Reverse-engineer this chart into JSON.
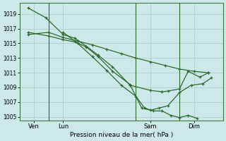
{
  "bg_color": "#cce8e8",
  "line_color": "#2d6b2d",
  "grid_color": "#aacccc",
  "ylim": [
    1004.5,
    1020.5
  ],
  "yticks": [
    1005,
    1007,
    1009,
    1011,
    1013,
    1015,
    1017,
    1019
  ],
  "xlabel": "Pression niveau de la mer( hPa )",
  "xlim": [
    0.0,
    7.0
  ],
  "xtick_positions": [
    0.5,
    1.5,
    4.5,
    6.0
  ],
  "xtick_labels": [
    "Ven",
    "Lun",
    "Sam",
    "Dim"
  ],
  "vlines": [
    1.0,
    4.0,
    5.5
  ],
  "lines": [
    {
      "x": [
        0.3,
        0.9,
        1.5,
        1.9,
        2.3,
        2.7,
        3.2,
        3.8,
        4.5,
        4.9,
        5.1,
        5.5,
        5.8,
        6.2,
        6.5
      ],
      "y": [
        1019.8,
        1018.5,
        1016.2,
        1015.7,
        1014.6,
        1013.4,
        1011.8,
        1009.3,
        1008.6,
        1008.4,
        1008.5,
        1008.8,
        1011.2,
        1010.4,
        1011.0
      ]
    },
    {
      "x": [
        0.3,
        1.0,
        1.5,
        1.9,
        2.3,
        2.7,
        3.2,
        3.8,
        4.2,
        4.5,
        4.8,
        5.1,
        5.5,
        5.9,
        6.3,
        6.6
      ],
      "y": [
        1016.5,
        1016.0,
        1015.5,
        1015.2,
        1014.5,
        1013.2,
        1011.2,
        1009.4,
        1006.2,
        1005.9,
        1006.2,
        1006.5,
        1008.3,
        1009.3,
        1009.5,
        1010.3
      ]
    },
    {
      "x": [
        0.3,
        1.0,
        1.5,
        2.0,
        2.5,
        3.0,
        3.5,
        4.0,
        4.5,
        5.0,
        5.5,
        6.0,
        6.5
      ],
      "y": [
        1016.2,
        1016.5,
        1015.8,
        1015.3,
        1014.8,
        1014.2,
        1013.6,
        1013.0,
        1012.5,
        1012.0,
        1011.5,
        1011.2,
        1011.0
      ]
    },
    {
      "x": [
        1.5,
        2.0,
        2.5,
        3.0,
        3.5,
        4.0,
        4.3,
        4.6,
        4.9,
        5.2,
        5.5,
        5.8,
        6.1
      ],
      "y": [
        1016.5,
        1015.0,
        1013.2,
        1011.3,
        1009.3,
        1007.8,
        1006.2,
        1005.8,
        1005.8,
        1005.2,
        1004.9,
        1005.2,
        1004.8
      ]
    }
  ]
}
